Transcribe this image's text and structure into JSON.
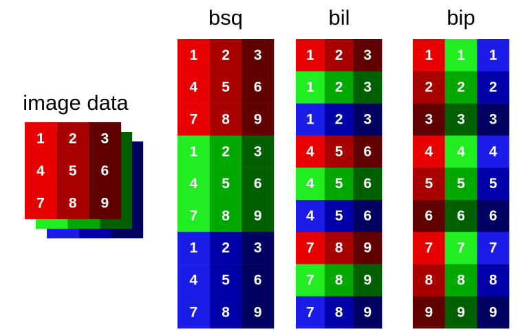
{
  "image_data": {
    "title": "image data",
    "rows": [
      [
        1,
        2,
        3
      ],
      [
        4,
        5,
        6
      ],
      [
        7,
        8,
        9
      ]
    ]
  },
  "bsq": {
    "title": "bsq",
    "rows": [
      [
        1,
        2,
        3
      ],
      [
        4,
        5,
        6
      ],
      [
        7,
        8,
        9
      ],
      [
        1,
        2,
        3
      ],
      [
        4,
        5,
        6
      ],
      [
        7,
        8,
        9
      ],
      [
        1,
        2,
        3
      ],
      [
        4,
        5,
        6
      ],
      [
        7,
        8,
        9
      ]
    ]
  },
  "bil": {
    "title": "bil",
    "rows": [
      [
        1,
        2,
        3
      ],
      [
        1,
        2,
        3
      ],
      [
        1,
        2,
        3
      ],
      [
        4,
        5,
        6
      ],
      [
        4,
        5,
        6
      ],
      [
        4,
        5,
        6
      ],
      [
        7,
        8,
        9
      ],
      [
        7,
        8,
        9
      ],
      [
        7,
        8,
        9
      ]
    ]
  },
  "bip": {
    "title": "bip",
    "rows": [
      [
        1,
        1,
        1
      ],
      [
        2,
        2,
        2
      ],
      [
        3,
        3,
        3
      ],
      [
        4,
        4,
        4
      ],
      [
        5,
        5,
        5
      ],
      [
        6,
        6,
        6
      ],
      [
        7,
        7,
        7
      ],
      [
        8,
        8,
        8
      ],
      [
        9,
        9,
        9
      ]
    ]
  }
}
